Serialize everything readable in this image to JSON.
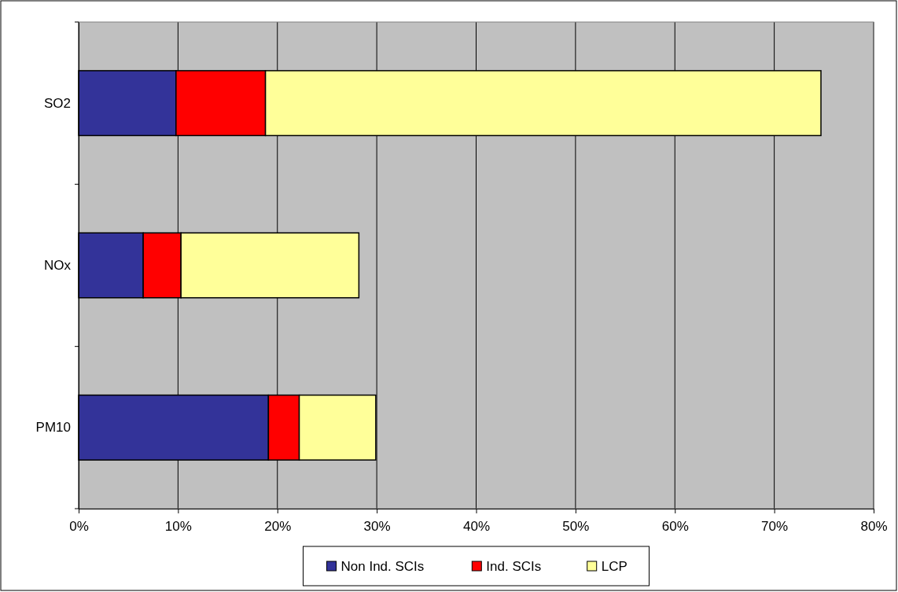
{
  "chart_data": {
    "type": "bar",
    "orientation": "horizontal",
    "stacked": true,
    "categories": [
      "SO2",
      "NOx",
      "PM10"
    ],
    "series": [
      {
        "name": "Non Ind. SCIs",
        "color": "#333399",
        "values": [
          9.8,
          6.5,
          19.1
        ]
      },
      {
        "name": "Ind. SCIs",
        "color": "#ff0000",
        "values": [
          9.0,
          3.8,
          3.1
        ]
      },
      {
        "name": "LCP",
        "color": "#ffff99",
        "values": [
          55.9,
          17.9,
          7.7
        ]
      }
    ],
    "xlim": [
      0,
      80
    ],
    "xticks": [
      {
        "value": 0,
        "label": "0%"
      },
      {
        "value": 10,
        "label": "10%"
      },
      {
        "value": 20,
        "label": "20%"
      },
      {
        "value": 30,
        "label": "30%"
      },
      {
        "value": 40,
        "label": "40%"
      },
      {
        "value": 50,
        "label": "50%"
      },
      {
        "value": 60,
        "label": "60%"
      },
      {
        "value": 70,
        "label": "70%"
      },
      {
        "value": 80,
        "label": "80%"
      }
    ],
    "grid": "x",
    "legend": "bottom"
  }
}
